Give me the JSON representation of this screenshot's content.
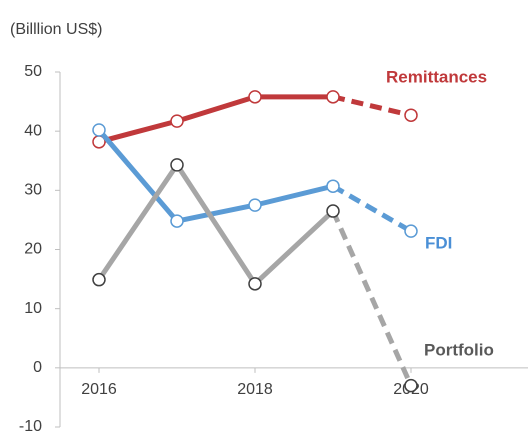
{
  "chart_data": {
    "type": "line",
    "y_axis_label": "(Billlion US$)",
    "x": [
      2016,
      2017,
      2018,
      2019,
      2020
    ],
    "series": [
      {
        "name": "Remittances",
        "color": "#c0393b",
        "label_color": "#c0393b",
        "values": [
          38.2,
          41.7,
          45.8,
          45.8,
          42.7
        ]
      },
      {
        "name": "FDI",
        "color": "#5b9bd5",
        "label_color": "#4a8fd6",
        "values": [
          40.2,
          24.8,
          27.5,
          30.7,
          23.1
        ]
      },
      {
        "name": "Portfolio",
        "color": "#a6a6a6",
        "label_color": "#595959",
        "marker_color": "#404040",
        "values": [
          14.9,
          34.3,
          14.2,
          26.5,
          -3.0
        ]
      }
    ],
    "dashed_from_x": 2019,
    "xlim": [
      2015.5,
      2021.5
    ],
    "xticks": [
      2016,
      2018,
      2020
    ],
    "ylim": [
      -10,
      50
    ],
    "yticks": [
      -10,
      0,
      10,
      20,
      30,
      40,
      50
    ],
    "grid": false
  }
}
